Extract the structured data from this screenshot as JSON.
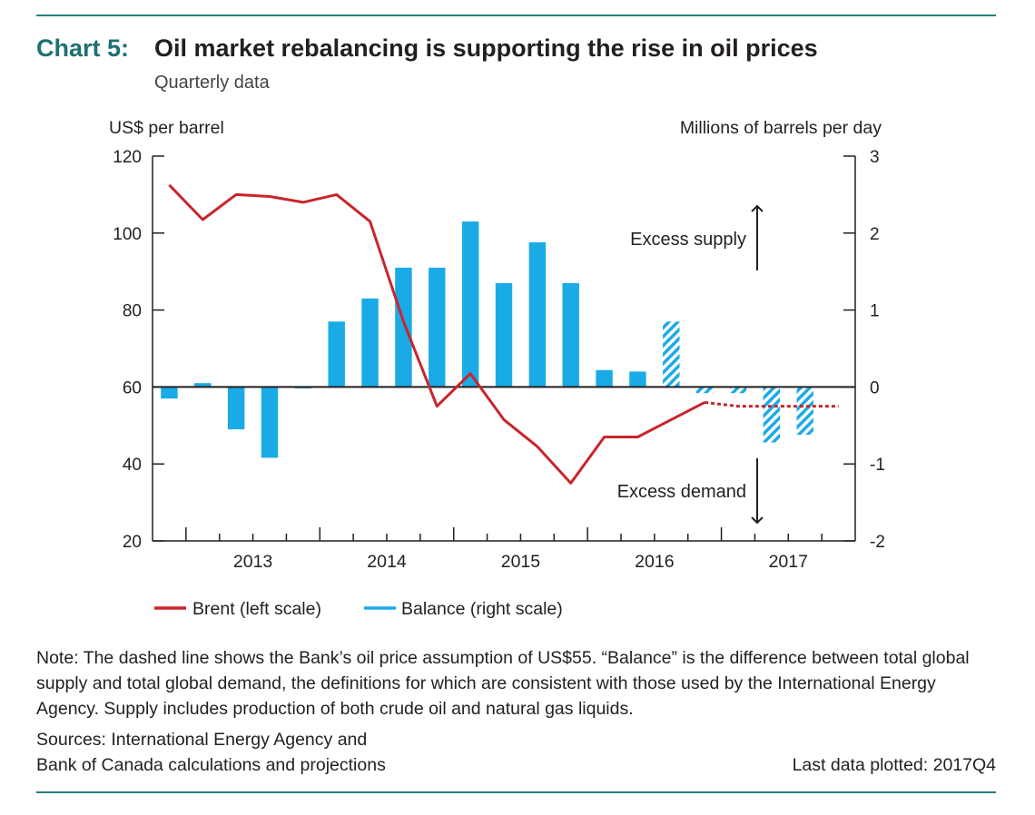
{
  "header": {
    "label": "Chart 5:",
    "title": "Oil market rebalancing is supporting the rise in oil prices",
    "subtitle": "Quarterly data"
  },
  "chart_data": {
    "type": "bar+line",
    "left_axis": {
      "label": "US$ per barrel",
      "range": [
        20,
        120
      ],
      "ticks": [
        20,
        40,
        60,
        80,
        100,
        120
      ]
    },
    "right_axis": {
      "label": "Millions of barrels per day",
      "range": [
        -2,
        3
      ],
      "ticks": [
        -2,
        -1,
        0,
        1,
        2,
        3
      ]
    },
    "x_year_labels": [
      "2013",
      "2014",
      "2015",
      "2016",
      "2017"
    ],
    "quarters": [
      "2012Q4",
      "2013Q1",
      "2013Q2",
      "2013Q3",
      "2013Q4",
      "2014Q1",
      "2014Q2",
      "2014Q3",
      "2014Q4",
      "2015Q1",
      "2015Q2",
      "2015Q3",
      "2015Q4",
      "2016Q1",
      "2016Q2",
      "2016Q3",
      "2016Q4",
      "2017Q1",
      "2017Q2",
      "2017Q3",
      "2017Q4"
    ],
    "series": [
      {
        "name": "Brent (left scale)",
        "kind": "line",
        "color": "#c8252c",
        "values": [
          112.5,
          103.5,
          110,
          109.5,
          108,
          110,
          103,
          77,
          55,
          63.5,
          51.5,
          44.5,
          35,
          47,
          47,
          51.5,
          56,
          55,
          55,
          55,
          55
        ],
        "projection_start_index": 16
      },
      {
        "name": "Balance (right scale)",
        "kind": "bar",
        "color": "#1aabe6",
        "values": [
          -0.15,
          0.05,
          -0.55,
          -0.92,
          0.0,
          0.85,
          1.15,
          1.55,
          1.55,
          2.15,
          1.35,
          1.88,
          1.35,
          0.22,
          0.2,
          0.85,
          -0.08,
          -0.08,
          -0.72,
          -0.62
        ],
        "projection_start_index": 15
      }
    ],
    "annotations": {
      "supply": "Excess supply",
      "demand": "Excess demand"
    },
    "legend": {
      "placement": "bottom-left"
    }
  },
  "footer": {
    "note": "Note: The dashed line shows the Bank’s oil price assumption of US$55. “Balance” is the difference between total global supply and total global demand, the definitions for which are consistent with those used by the International Energy Agency. Supply includes production of both crude oil and natural gas liquids.",
    "sources_line1": "Sources: International Energy Agency and",
    "sources_line2": "Bank of Canada calculations and projections",
    "last_data": "Last data plotted: 2017Q4"
  }
}
